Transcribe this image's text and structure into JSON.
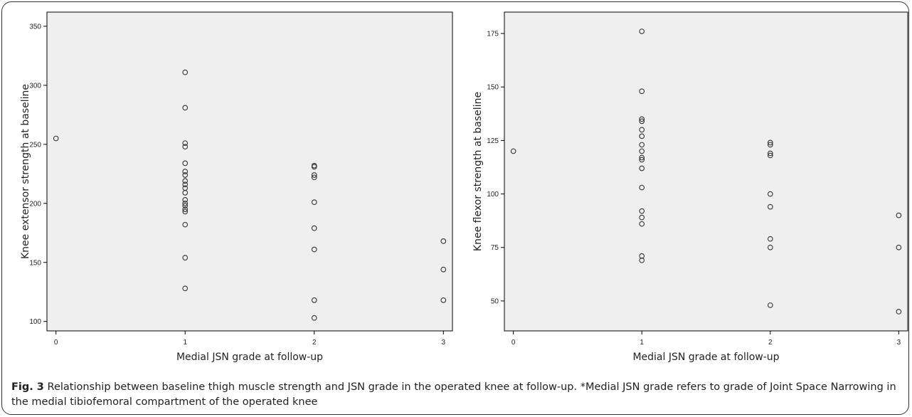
{
  "figure": {
    "caption_label": "Fig. 3",
    "caption_text": " Relationship between baseline thigh muscle strength and JSN grade in the operated knee at follow-up. *Medial JSN grade refers to grade of Joint Space Narrowing in the medial tibiofemoral compartment of the operated knee"
  },
  "chart_data": [
    {
      "type": "scatter",
      "xlabel": "Medial JSN grade at follow-up",
      "ylabel": "Knee extensor strength at baseline",
      "xticks": [
        0,
        1,
        2,
        3
      ],
      "yticks": [
        100,
        150,
        200,
        250,
        300,
        350
      ],
      "xlim": [
        -0.07,
        3.07
      ],
      "ylim": [
        92,
        362
      ],
      "points": [
        {
          "x": 0,
          "y": 255
        },
        {
          "x": 1,
          "y": 311
        },
        {
          "x": 1,
          "y": 281
        },
        {
          "x": 1,
          "y": 251
        },
        {
          "x": 1,
          "y": 248
        },
        {
          "x": 1,
          "y": 234
        },
        {
          "x": 1,
          "y": 227
        },
        {
          "x": 1,
          "y": 224
        },
        {
          "x": 1,
          "y": 219
        },
        {
          "x": 1,
          "y": 216
        },
        {
          "x": 1,
          "y": 213
        },
        {
          "x": 1,
          "y": 209
        },
        {
          "x": 1,
          "y": 203
        },
        {
          "x": 1,
          "y": 200
        },
        {
          "x": 1,
          "y": 198
        },
        {
          "x": 1,
          "y": 195
        },
        {
          "x": 1,
          "y": 193
        },
        {
          "x": 1,
          "y": 182
        },
        {
          "x": 1,
          "y": 154
        },
        {
          "x": 1,
          "y": 128
        },
        {
          "x": 2,
          "y": 232
        },
        {
          "x": 2,
          "y": 231
        },
        {
          "x": 2,
          "y": 224
        },
        {
          "x": 2,
          "y": 222
        },
        {
          "x": 2,
          "y": 201
        },
        {
          "x": 2,
          "y": 179
        },
        {
          "x": 2,
          "y": 161
        },
        {
          "x": 2,
          "y": 118
        },
        {
          "x": 2,
          "y": 103
        },
        {
          "x": 3,
          "y": 168
        },
        {
          "x": 3,
          "y": 144
        },
        {
          "x": 3,
          "y": 118
        }
      ]
    },
    {
      "type": "scatter",
      "xlabel": "Medial JSN grade at follow-up",
      "ylabel": "Knee flexor strength at baseline",
      "xticks": [
        0,
        1,
        2,
        3
      ],
      "yticks": [
        50,
        75,
        100,
        125,
        150,
        175
      ],
      "xlim": [
        -0.07,
        3.07
      ],
      "ylim": [
        36,
        185
      ],
      "points": [
        {
          "x": 0,
          "y": 120
        },
        {
          "x": 1,
          "y": 176
        },
        {
          "x": 1,
          "y": 148
        },
        {
          "x": 1,
          "y": 135
        },
        {
          "x": 1,
          "y": 134
        },
        {
          "x": 1,
          "y": 130
        },
        {
          "x": 1,
          "y": 127
        },
        {
          "x": 1,
          "y": 123
        },
        {
          "x": 1,
          "y": 120
        },
        {
          "x": 1,
          "y": 117
        },
        {
          "x": 1,
          "y": 116
        },
        {
          "x": 1,
          "y": 112
        },
        {
          "x": 1,
          "y": 103
        },
        {
          "x": 1,
          "y": 92
        },
        {
          "x": 1,
          "y": 89
        },
        {
          "x": 1,
          "y": 86
        },
        {
          "x": 1,
          "y": 71
        },
        {
          "x": 1,
          "y": 69
        },
        {
          "x": 2,
          "y": 124
        },
        {
          "x": 2,
          "y": 123
        },
        {
          "x": 2,
          "y": 119
        },
        {
          "x": 2,
          "y": 118
        },
        {
          "x": 2,
          "y": 100
        },
        {
          "x": 2,
          "y": 94
        },
        {
          "x": 2,
          "y": 79
        },
        {
          "x": 2,
          "y": 75
        },
        {
          "x": 2,
          "y": 48
        },
        {
          "x": 3,
          "y": 90
        },
        {
          "x": 3,
          "y": 75
        },
        {
          "x": 3,
          "y": 45
        }
      ]
    }
  ],
  "colors": {
    "plot_bg": "#efefef",
    "axis": "#000000",
    "marker_stroke": "#333333"
  }
}
